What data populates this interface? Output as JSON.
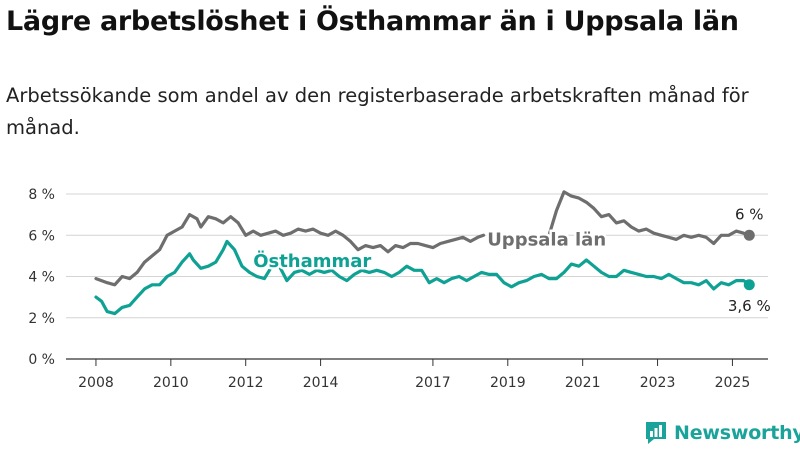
{
  "header": {
    "title": "Lägre arbetslöshet i Östhammar än i Uppsala län",
    "subtitle": "Arbetssökande som andel av den registerbaserade arbetskraften månad för månad."
  },
  "brand": {
    "name": "Newsworthy",
    "icon": "newsworthy-logo-icon",
    "color": "#1aa39a"
  },
  "chart_data": {
    "type": "line",
    "title": "Lägre arbetslöshet i Östhammar än i Uppsala län",
    "subtitle": "Arbetssökande som andel av den registerbaserade arbetskraften månad för månad.",
    "xlabel": "",
    "ylabel": "",
    "ylim": [
      0,
      8
    ],
    "y_ticks": [
      0,
      2,
      4,
      6,
      8
    ],
    "y_tick_labels": [
      "0 %",
      "2 %",
      "4 %",
      "6 %",
      "8 %"
    ],
    "x_ticks": [
      2008,
      2010,
      2012,
      2014,
      2017,
      2019,
      2021,
      2023,
      2025
    ],
    "x_tick_labels": [
      "2008",
      "2010",
      "2012",
      "2014",
      "2017",
      "2019",
      "2021",
      "2023",
      "2025"
    ],
    "grid": "horizontal",
    "series": [
      {
        "name": "Uppsala län",
        "color": "#6e6e6e",
        "end_label": "6 %",
        "points": [
          [
            2008.0,
            3.9
          ],
          [
            2008.3,
            3.7
          ],
          [
            2008.5,
            3.6
          ],
          [
            2008.7,
            4.0
          ],
          [
            2008.9,
            3.9
          ],
          [
            2009.1,
            4.2
          ],
          [
            2009.3,
            4.7
          ],
          [
            2009.5,
            5.0
          ],
          [
            2009.7,
            5.3
          ],
          [
            2009.9,
            6.0
          ],
          [
            2010.1,
            6.2
          ],
          [
            2010.3,
            6.4
          ],
          [
            2010.5,
            7.0
          ],
          [
            2010.7,
            6.8
          ],
          [
            2010.8,
            6.4
          ],
          [
            2011.0,
            6.9
          ],
          [
            2011.2,
            6.8
          ],
          [
            2011.4,
            6.6
          ],
          [
            2011.6,
            6.9
          ],
          [
            2011.8,
            6.6
          ],
          [
            2012.0,
            6.0
          ],
          [
            2012.2,
            6.2
          ],
          [
            2012.4,
            6.0
          ],
          [
            2012.6,
            6.1
          ],
          [
            2012.8,
            6.2
          ],
          [
            2013.0,
            6.0
          ],
          [
            2013.2,
            6.1
          ],
          [
            2013.4,
            6.3
          ],
          [
            2013.6,
            6.2
          ],
          [
            2013.8,
            6.3
          ],
          [
            2014.0,
            6.1
          ],
          [
            2014.2,
            6.0
          ],
          [
            2014.4,
            6.2
          ],
          [
            2014.6,
            6.0
          ],
          [
            2014.8,
            5.7
          ],
          [
            2015.0,
            5.3
          ],
          [
            2015.2,
            5.5
          ],
          [
            2015.4,
            5.4
          ],
          [
            2015.6,
            5.5
          ],
          [
            2015.8,
            5.2
          ],
          [
            2016.0,
            5.5
          ],
          [
            2016.2,
            5.4
          ],
          [
            2016.4,
            5.6
          ],
          [
            2016.6,
            5.6
          ],
          [
            2016.8,
            5.5
          ],
          [
            2017.0,
            5.4
          ],
          [
            2017.2,
            5.6
          ],
          [
            2017.4,
            5.7
          ],
          [
            2017.6,
            5.8
          ],
          [
            2017.8,
            5.9
          ],
          [
            2018.0,
            5.7
          ],
          [
            2018.2,
            5.9
          ],
          [
            2018.35,
            6.0
          ],
          null,
          [
            2020.1,
            6.0
          ],
          [
            2020.3,
            7.2
          ],
          [
            2020.5,
            8.1
          ],
          [
            2020.7,
            7.9
          ],
          [
            2020.9,
            7.8
          ],
          [
            2021.1,
            7.6
          ],
          [
            2021.3,
            7.3
          ],
          [
            2021.5,
            6.9
          ],
          [
            2021.7,
            7.0
          ],
          [
            2021.9,
            6.6
          ],
          [
            2022.1,
            6.7
          ],
          [
            2022.3,
            6.4
          ],
          [
            2022.5,
            6.2
          ],
          [
            2022.7,
            6.3
          ],
          [
            2022.9,
            6.1
          ],
          [
            2023.1,
            6.0
          ],
          [
            2023.3,
            5.9
          ],
          [
            2023.5,
            5.8
          ],
          [
            2023.7,
            6.0
          ],
          [
            2023.9,
            5.9
          ],
          [
            2024.1,
            6.0
          ],
          [
            2024.3,
            5.9
          ],
          [
            2024.5,
            5.6
          ],
          [
            2024.7,
            6.0
          ],
          [
            2024.9,
            6.0
          ],
          [
            2025.1,
            6.2
          ],
          [
            2025.3,
            6.1
          ],
          [
            2025.45,
            6.0
          ]
        ]
      },
      {
        "name": "Östhammar",
        "color": "#0fa294",
        "end_label": "3,6 %",
        "points": [
          [
            2008.0,
            3.0
          ],
          [
            2008.15,
            2.8
          ],
          [
            2008.3,
            2.3
          ],
          [
            2008.5,
            2.2
          ],
          [
            2008.7,
            2.5
          ],
          [
            2008.9,
            2.6
          ],
          [
            2009.1,
            3.0
          ],
          [
            2009.3,
            3.4
          ],
          [
            2009.5,
            3.6
          ],
          [
            2009.7,
            3.6
          ],
          [
            2009.9,
            4.0
          ],
          [
            2010.1,
            4.2
          ],
          [
            2010.3,
            4.7
          ],
          [
            2010.5,
            5.1
          ],
          [
            2010.6,
            4.8
          ],
          [
            2010.8,
            4.4
          ],
          [
            2011.0,
            4.5
          ],
          [
            2011.2,
            4.7
          ],
          [
            2011.4,
            5.3
          ],
          [
            2011.5,
            5.7
          ],
          [
            2011.7,
            5.3
          ],
          [
            2011.9,
            4.5
          ],
          [
            2012.1,
            4.2
          ],
          [
            2012.3,
            4.0
          ],
          [
            2012.5,
            3.9
          ],
          [
            2012.7,
            4.5
          ],
          [
            2012.9,
            4.5
          ],
          [
            2013.1,
            3.8
          ],
          [
            2013.3,
            4.2
          ],
          [
            2013.5,
            4.3
          ],
          [
            2013.7,
            4.1
          ],
          [
            2013.9,
            4.3
          ],
          [
            2014.1,
            4.2
          ],
          [
            2014.3,
            4.3
          ],
          [
            2014.5,
            4.0
          ],
          [
            2014.7,
            3.8
          ],
          [
            2014.9,
            4.1
          ],
          [
            2015.1,
            4.3
          ],
          [
            2015.3,
            4.2
          ],
          [
            2015.5,
            4.3
          ],
          [
            2015.7,
            4.2
          ],
          [
            2015.9,
            4.0
          ],
          [
            2016.1,
            4.2
          ],
          [
            2016.3,
            4.5
          ],
          [
            2016.5,
            4.3
          ],
          [
            2016.7,
            4.3
          ],
          [
            2016.9,
            3.7
          ],
          [
            2017.1,
            3.9
          ],
          [
            2017.3,
            3.7
          ],
          [
            2017.5,
            3.9
          ],
          [
            2017.7,
            4.0
          ],
          [
            2017.9,
            3.8
          ],
          [
            2018.1,
            4.0
          ],
          [
            2018.3,
            4.2
          ],
          [
            2018.5,
            4.1
          ],
          [
            2018.7,
            4.1
          ],
          [
            2018.9,
            3.7
          ],
          [
            2019.1,
            3.5
          ],
          [
            2019.3,
            3.7
          ],
          [
            2019.5,
            3.8
          ],
          [
            2019.7,
            4.0
          ],
          [
            2019.9,
            4.1
          ],
          [
            2020.1,
            3.9
          ],
          [
            2020.3,
            3.9
          ],
          [
            2020.5,
            4.2
          ],
          [
            2020.7,
            4.6
          ],
          [
            2020.9,
            4.5
          ],
          [
            2021.1,
            4.8
          ],
          [
            2021.3,
            4.5
          ],
          [
            2021.5,
            4.2
          ],
          [
            2021.7,
            4.0
          ],
          [
            2021.9,
            4.0
          ],
          [
            2022.1,
            4.3
          ],
          [
            2022.3,
            4.2
          ],
          [
            2022.5,
            4.1
          ],
          [
            2022.7,
            4.0
          ],
          [
            2022.9,
            4.0
          ],
          [
            2023.1,
            3.9
          ],
          [
            2023.3,
            4.1
          ],
          [
            2023.5,
            3.9
          ],
          [
            2023.7,
            3.7
          ],
          [
            2023.9,
            3.7
          ],
          [
            2024.1,
            3.6
          ],
          [
            2024.3,
            3.8
          ],
          [
            2024.5,
            3.4
          ],
          [
            2024.7,
            3.7
          ],
          [
            2024.9,
            3.6
          ],
          [
            2025.1,
            3.8
          ],
          [
            2025.3,
            3.8
          ],
          [
            2025.45,
            3.6
          ]
        ]
      }
    ]
  }
}
